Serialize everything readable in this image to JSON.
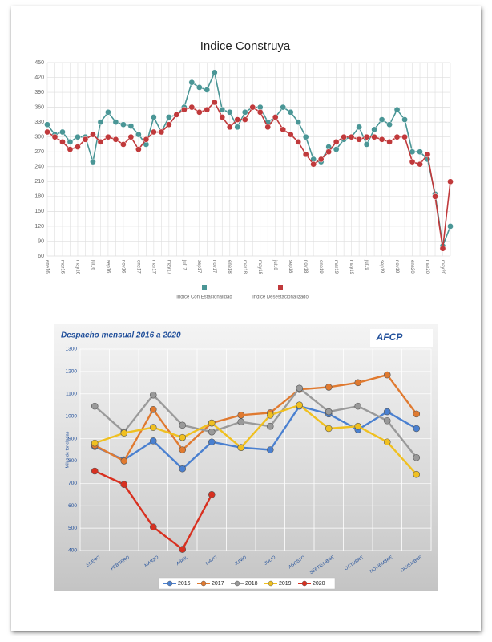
{
  "chart_data": [
    {
      "type": "line",
      "title": "Indice Construya",
      "categories": [
        "ene16",
        null,
        "mar16",
        null,
        "may16",
        null,
        "jul16",
        null,
        "sep16",
        null,
        "nov16",
        null,
        "ene17",
        null,
        "mar17",
        null,
        "may17",
        null,
        "jul17",
        null,
        "sep17",
        null,
        "nov17",
        null,
        "ene18",
        null,
        "mar18",
        null,
        "may18",
        null,
        "jul18",
        null,
        "sep18",
        null,
        "nov18",
        null,
        "ene19",
        null,
        "mar19",
        null,
        "may19",
        null,
        "jul19",
        null,
        "sep19",
        null,
        "nov19",
        null,
        "ene20",
        null,
        "mar20",
        null,
        "may20",
        null
      ],
      "series": [
        {
          "name": "Indice Con Estacionalidad",
          "color": "#4a9696",
          "values": [
            325,
            305,
            310,
            290,
            300,
            300,
            250,
            330,
            350,
            330,
            325,
            322,
            305,
            285,
            340,
            310,
            340,
            345,
            360,
            410,
            400,
            395,
            430,
            355,
            350,
            320,
            350,
            360,
            360,
            330,
            340,
            360,
            350,
            330,
            300,
            255,
            250,
            280,
            275,
            295,
            300,
            320,
            285,
            315,
            335,
            325,
            355,
            335,
            270,
            270,
            255,
            185,
            80,
            120
          ]
        },
        {
          "name": "Indice Desestacionalizado",
          "color": "#c0393b",
          "values": [
            310,
            300,
            290,
            275,
            280,
            295,
            305,
            290,
            300,
            295,
            285,
            300,
            275,
            295,
            310,
            310,
            325,
            345,
            355,
            360,
            350,
            355,
            370,
            340,
            320,
            335,
            335,
            360,
            350,
            320,
            340,
            315,
            305,
            290,
            265,
            245,
            255,
            270,
            290,
            300,
            300,
            295,
            300,
            300,
            295,
            290,
            300,
            300,
            250,
            245,
            265,
            180,
            75,
            210
          ]
        }
      ],
      "ylim": [
        60,
        450
      ],
      "yticks": [
        60,
        90,
        120,
        150,
        180,
        210,
        240,
        270,
        300,
        330,
        360,
        390,
        420,
        450
      ],
      "grid": true,
      "legend": "bottom"
    },
    {
      "type": "line",
      "title": "Despacho mensual 2016 a 2020",
      "logo": "AFCP",
      "y_label": "Miles de toneladas",
      "categories": [
        "ENERO",
        "FEBRERO",
        "MARZO",
        "ABRIL",
        "MAYO",
        "JUNIO",
        "JULIO",
        "AGOSTO",
        "SEPTIEMBRE",
        "OCTUBRE",
        "NOVIEMBRE",
        "DICIEMBRE"
      ],
      "series": [
        {
          "name": "2016",
          "color": "#4a80d0",
          "values": [
            865,
            805,
            890,
            765,
            885,
            860,
            850,
            1045,
            1010,
            940,
            1020,
            945
          ]
        },
        {
          "name": "2017",
          "color": "#e07a30",
          "values": [
            870,
            800,
            1030,
            850,
            970,
            1005,
            1015,
            1120,
            1130,
            1150,
            1185,
            1010
          ]
        },
        {
          "name": "2018",
          "color": "#9a9a9a",
          "values": [
            1045,
            930,
            1095,
            960,
            930,
            975,
            955,
            1125,
            1020,
            1045,
            980,
            815
          ]
        },
        {
          "name": "2019",
          "color": "#f0c020",
          "values": [
            880,
            925,
            950,
            905,
            970,
            860,
            1005,
            1050,
            945,
            955,
            885,
            740
          ]
        },
        {
          "name": "2020",
          "color": "#d83020",
          "values": [
            755,
            695,
            505,
            405,
            650,
            null,
            null,
            null,
            null,
            null,
            null,
            null
          ]
        }
      ],
      "ylim": [
        400,
        1300
      ],
      "yticks": [
        400,
        500,
        600,
        700,
        800,
        900,
        1000,
        1100,
        1200,
        1300
      ],
      "grid": true,
      "legend": "bottom"
    }
  ]
}
